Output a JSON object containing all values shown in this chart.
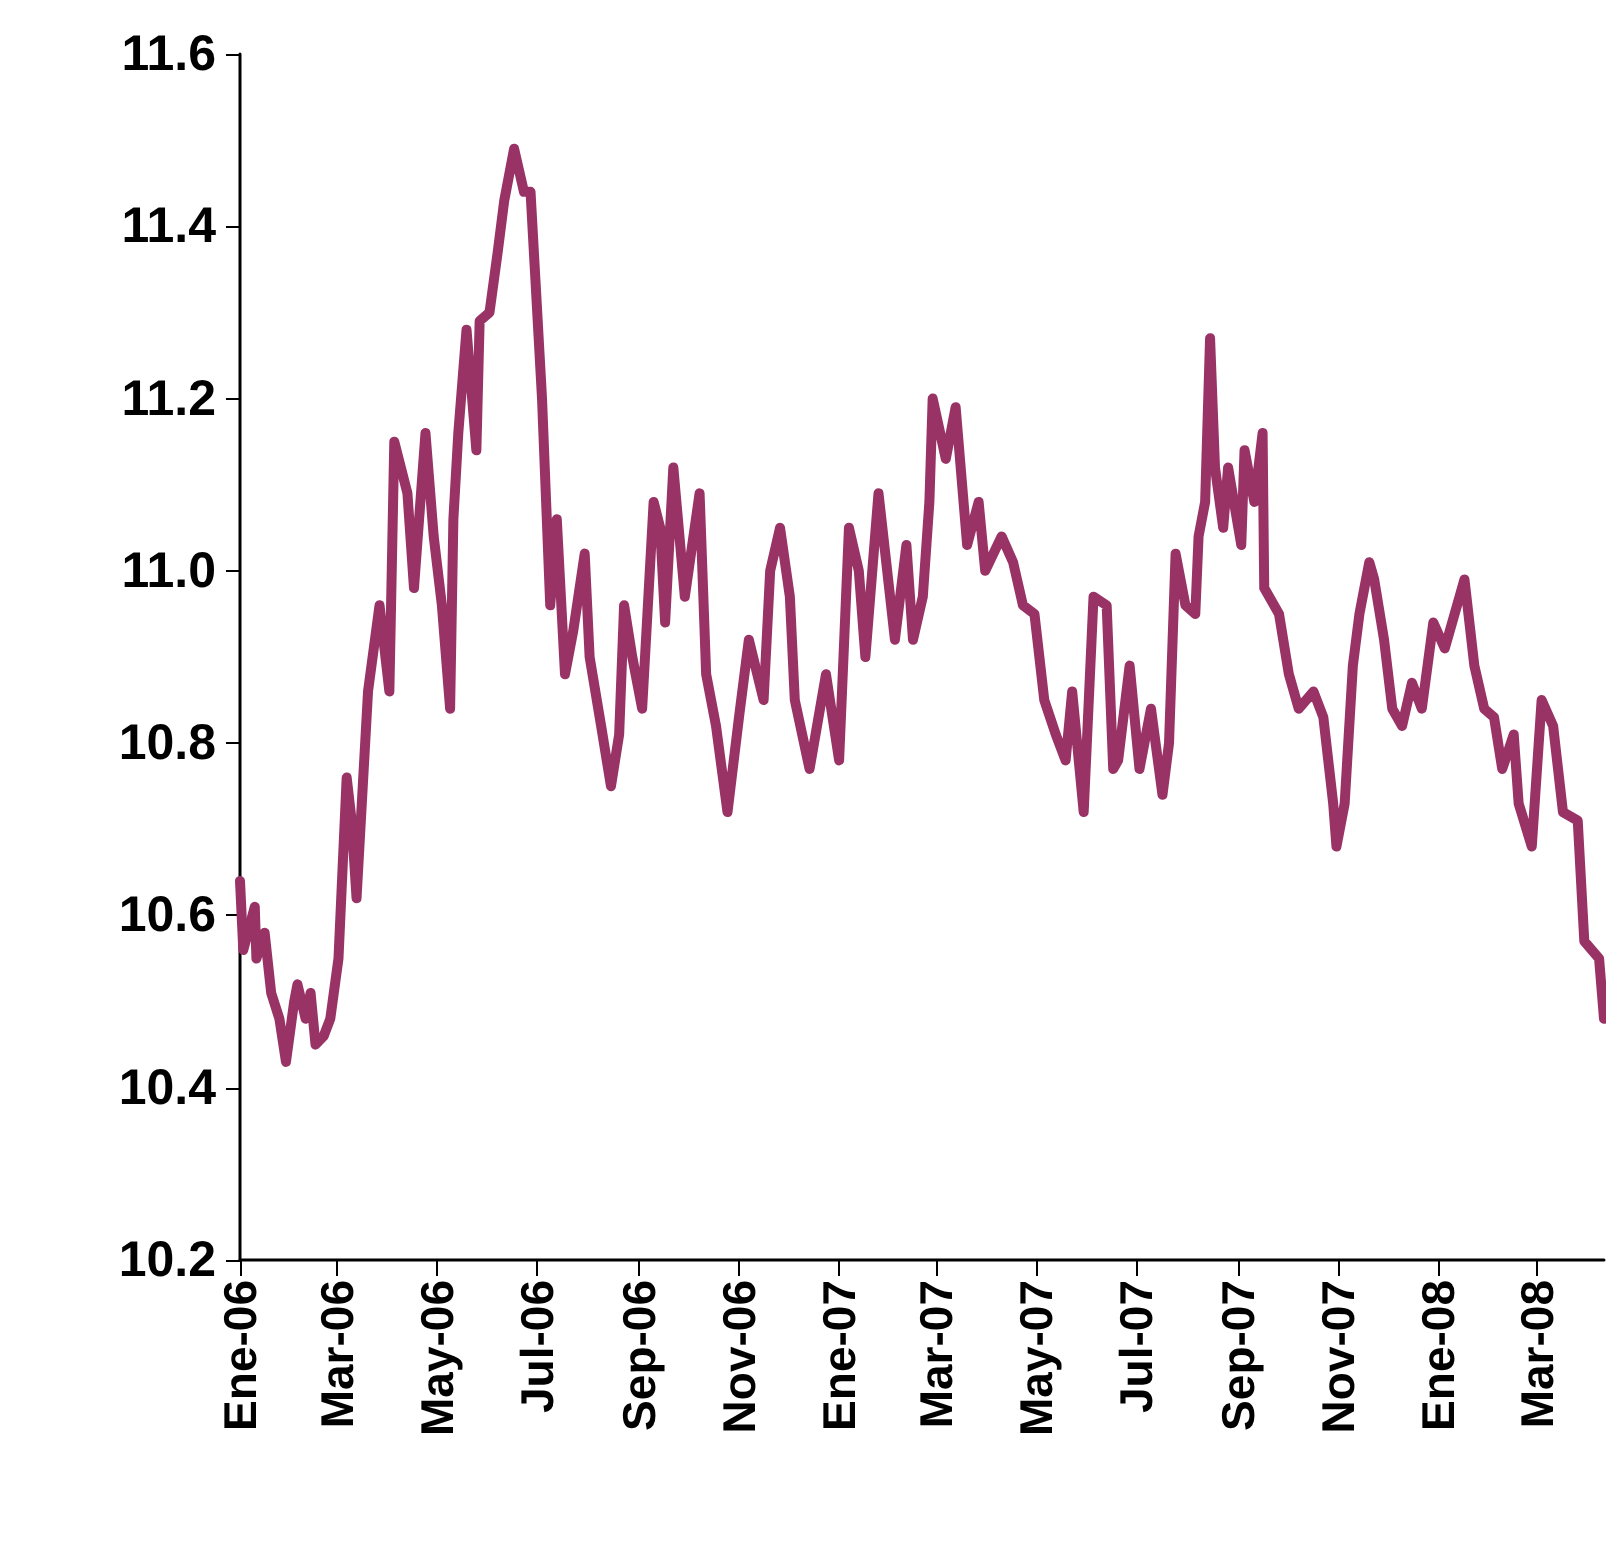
{
  "chart_data": {
    "type": "line",
    "x": [
      "2006-01-01",
      "2006-01-03",
      "2006-01-10",
      "2006-01-11",
      "2006-01-16",
      "2006-01-20",
      "2006-01-25",
      "2006-01-29",
      "2006-02-03",
      "2006-02-05",
      "2006-02-10",
      "2006-02-13",
      "2006-02-16",
      "2006-02-21",
      "2006-02-25",
      "2006-03-02",
      "2006-03-07",
      "2006-03-10",
      "2006-03-13",
      "2006-03-20",
      "2006-03-27",
      "2006-04-02",
      "2006-04-05",
      "2006-04-13",
      "2006-04-17",
      "2006-04-24",
      "2006-04-29",
      "2006-05-04",
      "2006-05-09",
      "2006-05-11",
      "2006-05-14",
      "2006-05-19",
      "2006-05-25",
      "2006-05-27",
      "2006-06-02",
      "2006-06-07",
      "2006-06-11",
      "2006-06-17",
      "2006-06-23",
      "2006-06-27",
      "2006-07-04",
      "2006-07-09",
      "2006-07-13",
      "2006-07-18",
      "2006-07-23",
      "2006-07-30",
      "2006-08-02",
      "2006-08-09",
      "2006-08-15",
      "2006-08-20",
      "2006-08-23",
      "2006-08-28",
      "2006-09-03",
      "2006-09-10",
      "2006-09-14",
      "2006-09-17",
      "2006-09-22",
      "2006-09-29",
      "2006-10-08",
      "2006-10-12",
      "2006-10-18",
      "2006-10-25",
      "2006-11-01",
      "2006-11-07",
      "2006-11-16",
      "2006-11-20",
      "2006-11-26",
      "2006-12-02",
      "2006-12-05",
      "2006-12-14",
      "2006-12-24",
      "2007-01-01",
      "2007-01-07",
      "2007-01-13",
      "2007-01-17",
      "2007-01-25",
      "2007-02-04",
      "2007-02-11",
      "2007-02-15",
      "2007-02-21",
      "2007-02-25",
      "2007-02-27",
      "2007-03-07",
      "2007-03-13",
      "2007-03-20",
      "2007-03-27",
      "2007-03-31",
      "2007-04-10",
      "2007-04-17",
      "2007-04-23",
      "2007-04-30",
      "2007-05-06",
      "2007-05-13",
      "2007-05-19",
      "2007-05-23",
      "2007-05-30",
      "2007-06-05",
      "2007-06-13",
      "2007-06-17",
      "2007-06-20",
      "2007-06-27",
      "2007-07-03",
      "2007-07-10",
      "2007-07-17",
      "2007-07-21",
      "2007-07-25",
      "2007-07-31",
      "2007-08-06",
      "2007-08-08",
      "2007-08-12",
      "2007-08-15",
      "2007-08-18",
      "2007-08-23",
      "2007-08-26",
      "2007-09-03",
      "2007-09-05",
      "2007-09-11",
      "2007-09-16",
      "2007-09-17",
      "2007-09-26",
      "2007-10-02",
      "2007-10-08",
      "2007-10-17",
      "2007-10-23",
      "2007-10-29",
      "2007-10-31",
      "2007-11-05",
      "2007-11-10",
      "2007-11-14",
      "2007-11-20",
      "2007-11-23",
      "2007-11-29",
      "2007-12-04",
      "2007-12-10",
      "2007-12-16",
      "2007-12-22",
      "2007-12-29",
      "2008-01-05",
      "2008-01-11",
      "2008-01-17",
      "2008-01-23",
      "2008-01-29",
      "2008-02-04",
      "2008-02-09",
      "2008-02-16",
      "2008-02-19",
      "2008-02-27",
      "2008-03-04",
      "2008-03-11",
      "2008-03-17",
      "2008-03-26",
      "2008-03-30",
      "2008-04-08",
      "2008-04-11"
    ],
    "series": [
      {
        "color": "#993366",
        "values": [
          10.64,
          10.56,
          10.61,
          10.55,
          10.58,
          10.51,
          10.48,
          10.43,
          10.5,
          10.52,
          10.48,
          10.51,
          10.45,
          10.46,
          10.48,
          10.55,
          10.76,
          10.71,
          10.62,
          10.86,
          10.96,
          10.86,
          11.15,
          11.09,
          10.98,
          11.16,
          11.04,
          10.96,
          10.84,
          11.06,
          11.16,
          11.28,
          11.14,
          11.29,
          11.3,
          11.37,
          11.43,
          11.49,
          11.44,
          11.44,
          11.2,
          10.96,
          11.06,
          10.88,
          10.93,
          11.02,
          10.9,
          10.82,
          10.75,
          10.81,
          10.96,
          10.9,
          10.84,
          11.08,
          11.05,
          10.94,
          11.12,
          10.97,
          11.09,
          10.88,
          10.82,
          10.72,
          10.83,
          10.92,
          10.85,
          11.0,
          11.05,
          10.97,
          10.85,
          10.77,
          10.88,
          10.78,
          11.05,
          11.0,
          10.9,
          11.09,
          10.92,
          11.03,
          10.92,
          10.97,
          11.08,
          11.2,
          11.13,
          11.19,
          11.03,
          11.08,
          11.0,
          11.04,
          11.01,
          10.96,
          10.95,
          10.85,
          10.81,
          10.78,
          10.86,
          10.72,
          10.97,
          10.96,
          10.77,
          10.78,
          10.89,
          10.77,
          10.84,
          10.74,
          10.8,
          11.02,
          10.96,
          10.95,
          11.04,
          11.08,
          11.27,
          11.12,
          11.05,
          11.12,
          11.03,
          11.14,
          11.08,
          11.16,
          10.98,
          10.95,
          10.88,
          10.84,
          10.86,
          10.83,
          10.73,
          10.68,
          10.73,
          10.89,
          10.95,
          11.01,
          10.99,
          10.92,
          10.84,
          10.82,
          10.87,
          10.84,
          10.94,
          10.91,
          10.95,
          10.99,
          10.89,
          10.84,
          10.83,
          10.77,
          10.81,
          10.73,
          10.68,
          10.85,
          10.82,
          10.72,
          10.71,
          10.57,
          10.55,
          10.48
        ]
      }
    ],
    "xlim": [
      "2006-01-01",
      "2008-04-11"
    ],
    "xticks": [
      {
        "value": "2006-01-01",
        "label": "Ene-06"
      },
      {
        "value": "2006-03-01",
        "label": "Mar-06"
      },
      {
        "value": "2006-05-01",
        "label": "May-06"
      },
      {
        "value": "2006-07-01",
        "label": "Jul-06"
      },
      {
        "value": "2006-09-01",
        "label": "Sep-06"
      },
      {
        "value": "2006-11-01",
        "label": "Nov-06"
      },
      {
        "value": "2007-01-01",
        "label": "Ene-07"
      },
      {
        "value": "2007-03-01",
        "label": "Mar-07"
      },
      {
        "value": "2007-05-01",
        "label": "May-07"
      },
      {
        "value": "2007-07-01",
        "label": "Jul-07"
      },
      {
        "value": "2007-09-01",
        "label": "Sep-07"
      },
      {
        "value": "2007-11-01",
        "label": "Nov-07"
      },
      {
        "value": "2008-01-01",
        "label": "Ene-08"
      },
      {
        "value": "2008-03-01",
        "label": "Mar-08"
      }
    ],
    "ylim": [
      10.2,
      11.6
    ],
    "yticks": [
      10.2,
      10.4,
      10.6,
      10.8,
      {
        "value": 11,
        "label": "11.0"
      },
      11.2,
      11.4,
      11.6
    ],
    "grid": false,
    "marker": "none",
    "line_style": "solid"
  }
}
